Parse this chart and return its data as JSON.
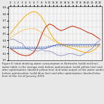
{
  "background_color": "#e8e8e8",
  "plot_bg_color": "#f5f5f5",
  "grid_color": "#cccccc",
  "red_color": "#cc2200",
  "yellow_color": "#ffaa00",
  "blue_color": "#4466bb",
  "purple_color": "#9999cc",
  "teal_color": "#00aaaa",
  "line_width": 0.7,
  "red_line": [
    0.28,
    0.24,
    0.2,
    0.18,
    0.17,
    0.18,
    0.22,
    0.32,
    0.48,
    0.6,
    0.65,
    0.63,
    0.58,
    0.55,
    0.57,
    0.6,
    0.62,
    0.6,
    0.58,
    0.55,
    0.52,
    0.5,
    0.46,
    0.42
  ],
  "yellow_solid": [
    0.5,
    0.58,
    0.65,
    0.72,
    0.78,
    0.82,
    0.84,
    0.82,
    0.76,
    0.66,
    0.54,
    0.44,
    0.38,
    0.34,
    0.32,
    0.3,
    0.28,
    0.26,
    0.24,
    0.22,
    0.22,
    0.24,
    0.28,
    0.34
  ],
  "yellow_dashed": [
    0.44,
    0.48,
    0.52,
    0.55,
    0.57,
    0.58,
    0.58,
    0.56,
    0.52,
    0.48,
    0.44,
    0.4,
    0.37,
    0.35,
    0.34,
    0.33,
    0.32,
    0.31,
    0.3,
    0.3,
    0.3,
    0.31,
    0.33,
    0.36
  ],
  "blue_solid": [
    0.28,
    0.28,
    0.28,
    0.28,
    0.28,
    0.28,
    0.28,
    0.28,
    0.28,
    0.28,
    0.3,
    0.32,
    0.34,
    0.34,
    0.34,
    0.34,
    0.34,
    0.34,
    0.34,
    0.34,
    0.34,
    0.34,
    0.34,
    0.34
  ],
  "blue_dashed": [
    0.3,
    0.3,
    0.3,
    0.3,
    0.3,
    0.3,
    0.3,
    0.3,
    0.3,
    0.3,
    0.32,
    0.32,
    0.32,
    0.32,
    0.32,
    0.32,
    0.32,
    0.32,
    0.32,
    0.32,
    0.32,
    0.32,
    0.32,
    0.32
  ],
  "purple_line": [
    0.42,
    0.42,
    0.38,
    0.36,
    0.28,
    0.26,
    0.24,
    0.24,
    0.26,
    0.24,
    0.24,
    0.22,
    0.18,
    0.17,
    0.18,
    0.2,
    0.2,
    0.18,
    0.17,
    0.2,
    0.24,
    0.28,
    0.36,
    0.4
  ],
  "x_labels": [
    "0",
    "1",
    "2",
    "3",
    "4",
    "5",
    "6",
    "7",
    "8",
    "9",
    "10",
    "11",
    "12",
    "13",
    "14",
    "15",
    "16",
    "17",
    "18",
    "19",
    "20",
    "21",
    "22",
    "23"
  ],
  "caption": "Figure 6: total drinking water consumption in Karlsruhe (solid red line), water table in the storage tank before optimisation (solid yellow line) and after optimisation (dashed yellow line) and total output of the water works before optimisation (solid blue line) and after optimisation (dashed blue line) of the 1st of January 2015"
}
